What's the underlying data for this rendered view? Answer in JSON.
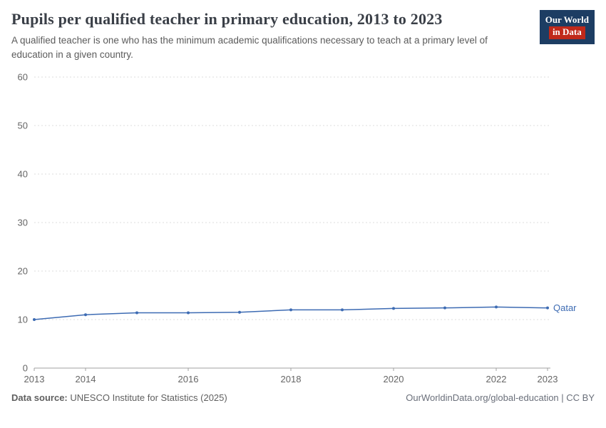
{
  "header": {
    "title": "Pupils per qualified teacher in primary education, 2013 to 2023",
    "subtitle": "A qualified teacher is one who has the minimum academic qualifications necessary to teach at a primary level of education in a given country.",
    "logo": {
      "line1": "Our World",
      "line2": "in Data"
    }
  },
  "chart_data": {
    "type": "line",
    "title": "Pupils per qualified teacher in primary education, 2013 to 2023",
    "x": [
      2013,
      2014,
      2015,
      2016,
      2017,
      2018,
      2019,
      2020,
      2021,
      2022,
      2023
    ],
    "series": [
      {
        "name": "Qatar",
        "values": [
          10,
          11,
          11.4,
          11.4,
          11.5,
          12,
          12,
          12.3,
          12.4,
          12.6,
          12.4
        ]
      }
    ],
    "xticks": [
      2013,
      2014,
      2016,
      2018,
      2020,
      2022,
      2023
    ],
    "yticks": [
      0,
      10,
      20,
      30,
      40,
      50,
      60
    ],
    "ylim": [
      0,
      60
    ],
    "grid": "dashed-horizontal",
    "legend_position": "end-of-line",
    "line_color": "#3d6bb3",
    "tick_label_color": "#666666"
  },
  "footer": {
    "source_label": "Data source:",
    "source_text": " UNESCO Institute for Statistics (2025)",
    "link": "OurWorldinData.org/global-education | CC BY"
  },
  "colors": {
    "navy": "#1d3d63",
    "red": "#c0291a",
    "line": "#3d6bb3",
    "gridline": "#dcdcdc",
    "axis": "#a1a1a1"
  }
}
